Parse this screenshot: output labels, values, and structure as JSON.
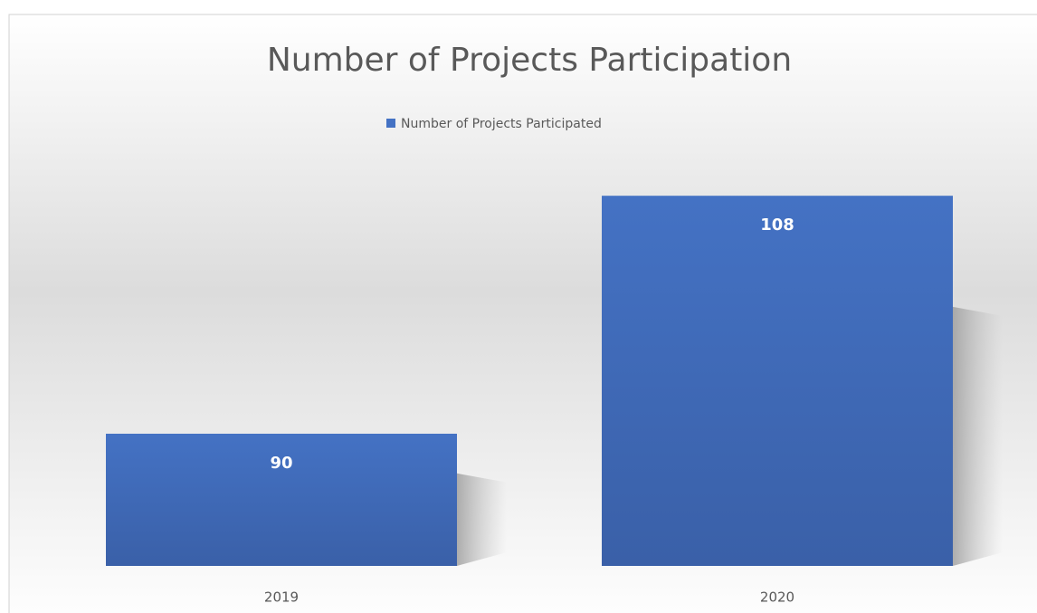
{
  "chart_data": {
    "type": "bar",
    "title": "Number of Projects Participation",
    "categories": [
      "2019",
      "2020"
    ],
    "series": [
      {
        "name": "Number of Projects Participated",
        "color": "#4472c4",
        "values": [
          90,
          108
        ]
      }
    ],
    "ylim": [
      80,
      110
    ],
    "legend": "top"
  }
}
